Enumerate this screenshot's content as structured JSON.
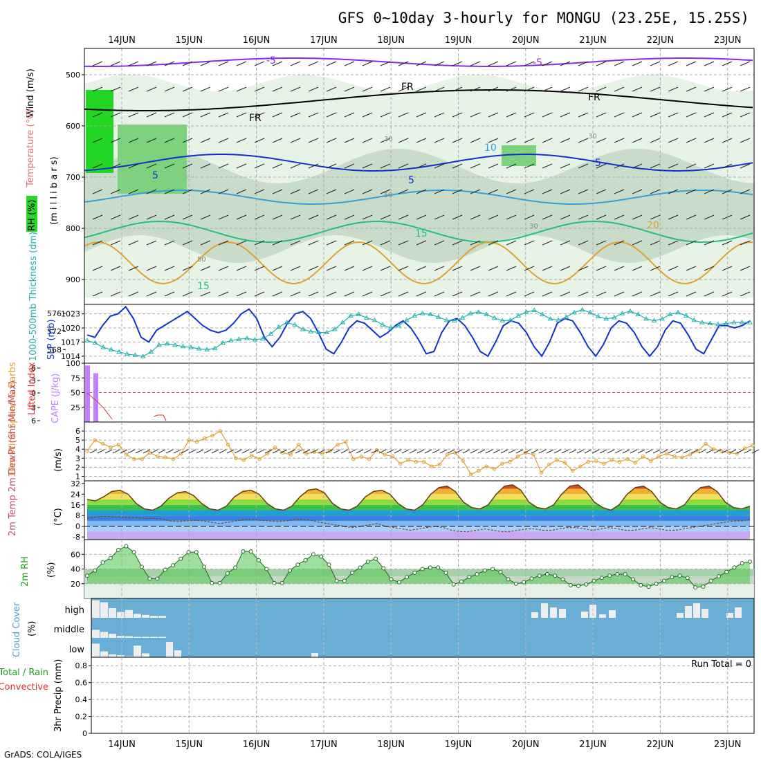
{
  "title": "GFS 0~10day 3-hourly for MONGU (23.25E, 15.25S)",
  "credit": "GrADS: COLA/IGES",
  "date_labels": [
    "14JUN",
    "15JUN",
    "16JUN",
    "17JUN",
    "18JUN",
    "19JUN",
    "20JUN",
    "21JUN",
    "22JUN",
    "23JUN"
  ],
  "colors": {
    "grid": "#b0b0b0",
    "rh_green": "#00d000",
    "temp_purple": "#8a2be2",
    "freezing": "#000000",
    "slp": "#1030d0",
    "thickness": "#20b0b0",
    "lifted": "#e03030",
    "cape": "#c080ff",
    "wind10": "#e0a030",
    "cloud": "#6aaed6"
  },
  "panels": {
    "upper_air": {
      "ylabel_wind": "Wind (m/s)",
      "ylabel_temp": "Temperature (°C)",
      "ylabel_rh": "RH (%)",
      "ylabel_pressure": "(m i l l i b a r s)",
      "pressure_ticks": [
        "500",
        "600",
        "700",
        "800",
        "900"
      ],
      "contour_labels": [
        "-5",
        "-5",
        "FR",
        "FR",
        "FR",
        "5",
        "5",
        "5",
        "15",
        "15",
        "20",
        "10",
        "30",
        "30",
        "50",
        "30",
        "50"
      ]
    },
    "slp_thickness": {
      "ylabel_thickness": "1000-500mb Thickness (dm)",
      "ylabel_slp": "SLP (mb)",
      "thickness_ticks": [
        "576",
        "572",
        "568"
      ],
      "slp_ticks": [
        "1023",
        "1020",
        "1017",
        "1014"
      ]
    },
    "cape_li": {
      "ylabel_li": "Lifted Index",
      "ylabel_cape": "CAPE (J/kg)",
      "li_ticks": [
        "-6",
        "-3",
        "0",
        "3",
        "6"
      ],
      "cape_ticks": [
        "100",
        "75",
        "50",
        "25",
        ""
      ]
    },
    "wind10": {
      "ylabel": "10m Wind Speed & Barbs",
      "unit": "(m/s)",
      "ticks": [
        "6",
        "5",
        "4",
        "3",
        "2",
        "1"
      ]
    },
    "temp2m": {
      "ylabel": "2m Temp 2m DewPt (6hr Min/Max)",
      "unit": "(°C)",
      "ticks": [
        "32",
        "24",
        "16",
        "8",
        "0",
        "-8"
      ]
    },
    "rh2m": {
      "ylabel": "2m RH",
      "unit": "(%)",
      "ticks": [
        "60",
        "40",
        "20"
      ]
    },
    "cloud": {
      "ylabel": "Cloud Cover",
      "unit": "(%)",
      "levels": [
        "high",
        "middle",
        "low"
      ]
    },
    "precip": {
      "ylabel": "3hr Precip (mm)",
      "legend_total": "Total / Rain",
      "legend_conv": "Convective",
      "run_total": "Run Total = 0",
      "ticks": [
        "0.8",
        "0.6",
        "0.4",
        "0.2",
        "0"
      ]
    }
  },
  "chart_data": [
    {
      "type": "line",
      "title": "SLP (mb)",
      "series": [
        {
          "name": "SLP (mb)",
          "values": [
            1018.5,
            1018,
            1020.5,
            1022.5,
            1023,
            1024.5,
            1022,
            1018,
            1017,
            1019.5,
            1020.5,
            1021.5,
            1022.5,
            1023.5,
            1022,
            1020.5,
            1019.5,
            1019,
            1019.5,
            1021,
            1023,
            1024,
            1022,
            1018,
            1016,
            1018,
            1021,
            1023,
            1023.5,
            1022,
            1019,
            1015.5,
            1014.5,
            1017,
            1020,
            1021.5,
            1021,
            1019.5,
            1018,
            1019,
            1020.5,
            1021.5,
            1020,
            1017.5,
            1014.5,
            1015,
            1019,
            1021.5,
            1022,
            1020.5,
            1018,
            1015,
            1014,
            1017,
            1020.5,
            1021.5,
            1021,
            1019,
            1016,
            1014,
            1017,
            1021,
            1022,
            1021.5,
            1019,
            1016,
            1014,
            1016.5,
            1020,
            1021.5,
            1021,
            1019,
            1016,
            1014,
            1016,
            1019.5,
            1021.5,
            1021,
            1018.5,
            1015.5,
            1014.5,
            1017.5,
            1020.5,
            1020.5,
            1020,
            1020.5,
            1021.5
          ]
        }
      ]
    },
    {
      "type": "line",
      "title": "1000-500mb Thickness (dm)",
      "series": [
        {
          "name": "1000-500mb Thickness (dm)",
          "values": [
            570,
            569.5,
            568.5,
            568,
            567.5,
            567,
            566.8,
            566.5,
            567.5,
            569,
            569.3,
            569,
            568.7,
            568.5,
            568.2,
            568,
            568.3,
            569.5,
            570,
            570.3,
            570.5,
            570.2,
            570.4,
            571.5,
            573,
            574,
            573.5,
            572.5,
            572,
            571.8,
            571.8,
            572.5,
            574,
            575.5,
            575.8,
            575,
            574.5,
            573.5,
            572.8,
            573.3,
            574.5,
            575.5,
            576,
            575.8,
            575.2,
            574.5,
            574.4,
            575,
            576,
            576.3,
            575.8,
            575,
            574.4,
            574.5,
            575.5,
            576.3,
            576.7,
            575.8,
            574.8,
            574.5,
            575.2,
            576.2,
            576.8,
            576.2,
            575.3,
            574.8,
            575.1,
            576,
            576.5,
            575.8,
            574.8,
            574.4,
            574.8,
            575.8,
            576.2,
            575.5,
            574.5,
            574,
            573.8,
            573.6,
            573.8,
            574,
            574,
            574
          ]
        }
      ]
    },
    {
      "type": "bar",
      "title": "CAPE (J/kg)",
      "series": [
        {
          "name": "CAPE (J/kg)",
          "values": [
            96,
            83,
            0,
            0
          ]
        }
      ]
    },
    {
      "type": "line",
      "title": "10m Wind Speed (m/s)",
      "series": [
        {
          "name": "10m Wind Speed",
          "values": [
            3.8,
            5,
            4.6,
            4.2,
            4.5,
            3.4,
            2.9,
            2.9,
            3.6,
            3.2,
            3.1,
            2.9,
            3.5,
            5,
            4.8,
            5.2,
            5.5,
            6,
            4.5,
            3,
            2.8,
            3.3,
            2.9,
            3.5,
            4.2,
            3.6,
            3.4,
            4.5,
            3.5,
            3.7,
            3.5,
            3.8,
            4.5,
            4.8,
            2.9,
            3.2,
            2.9,
            3.9,
            3.4,
            3.2,
            2.4,
            2.8,
            2.6,
            2.6,
            2.1,
            2.3,
            3.4,
            3.6,
            2.7,
            1.2,
            1.6,
            2.1,
            1.8,
            2.4,
            2.6,
            3.2,
            3.6,
            3.4,
            1.4,
            2.3,
            2.8,
            2.5,
            1.6,
            2.1,
            2.6,
            2.7,
            2.4,
            2.8,
            2.6,
            2.9,
            2.5,
            3.2,
            2.7,
            3.2,
            3.5,
            3.2,
            3.1,
            3.4,
            3.8,
            4.6,
            4,
            3.8,
            3.6,
            3.5,
            4.1,
            4.4
          ]
        }
      ]
    },
    {
      "type": "area",
      "title": "2m Temp (°C)",
      "series": [
        {
          "name": "2m Temp",
          "values": [
            20,
            19,
            22,
            26,
            27,
            24,
            17,
            13,
            12,
            15,
            21,
            25,
            26,
            23,
            17,
            13,
            12,
            15,
            22,
            26,
            27,
            24,
            17,
            13,
            12,
            15,
            22,
            27,
            28,
            25,
            17,
            13,
            12,
            15,
            22,
            26,
            27,
            24,
            17,
            13,
            12,
            16,
            24,
            29,
            30,
            26,
            18,
            14,
            13,
            16,
            24,
            30,
            31,
            27,
            18,
            14,
            13,
            16,
            24,
            30,
            31,
            26,
            18,
            14,
            12,
            16,
            24,
            29,
            30,
            26,
            18,
            14,
            13,
            16,
            24,
            29,
            30,
            26,
            18,
            14,
            13,
            15
          ]
        },
        {
          "name": "2m DewPt",
          "values": [
            6,
            7,
            7.5,
            7,
            7,
            6.5,
            6.5,
            6,
            6,
            5.5,
            4,
            3.5,
            4,
            4.5,
            4,
            3,
            2,
            3,
            4,
            5,
            5,
            4.5,
            4,
            3.5,
            4,
            5,
            5,
            4.5,
            3,
            2,
            1,
            0,
            -1,
            0,
            1,
            2,
            0,
            -1,
            -2,
            -3,
            -2,
            -1,
            0,
            -1,
            -3,
            -4,
            -4,
            -3,
            -2,
            -3,
            -4,
            -4,
            -3,
            -2,
            -2,
            -3,
            -3,
            -2,
            -1,
            -1,
            -2,
            -3,
            -2,
            -1,
            -2,
            -3,
            -3,
            -2,
            -1,
            -2,
            -3,
            -3,
            -2,
            -1,
            0,
            1,
            2,
            3,
            4,
            4,
            5
          ]
        }
      ]
    },
    {
      "type": "area",
      "title": "2m RH (%)",
      "series": [
        {
          "name": "2m RH",
          "values": [
            31,
            38,
            49,
            55,
            66,
            71,
            63,
            43,
            27,
            27,
            39,
            45,
            54,
            63,
            63,
            43,
            21,
            21,
            34,
            42,
            64,
            64,
            52,
            40,
            21,
            21,
            38,
            46,
            52,
            60,
            57,
            46,
            24,
            24,
            35,
            42,
            50,
            54,
            41,
            26,
            22,
            29,
            35,
            40,
            42,
            42,
            35,
            19,
            23,
            29,
            33,
            38,
            40,
            36,
            26,
            20,
            22,
            27,
            31,
            33,
            31,
            26,
            18,
            17,
            19,
            24,
            28,
            31,
            33,
            33,
            26,
            18,
            16,
            20,
            24,
            29,
            31,
            28,
            15,
            16,
            24,
            30,
            36,
            42,
            48,
            50
          ]
        }
      ]
    },
    {
      "type": "bar",
      "title": "Cloud Cover (%)",
      "series": [
        {
          "name": "high",
          "values": [
            90,
            80,
            50,
            30,
            40,
            20,
            15,
            10,
            10,
            0
          ]
        },
        {
          "name": "middle",
          "values": [
            40,
            30,
            20,
            10,
            8,
            5,
            5,
            5,
            5,
            0
          ]
        },
        {
          "name": "low",
          "values": [
            70,
            30,
            15,
            10,
            5,
            60,
            20,
            0,
            0,
            0
          ]
        }
      ]
    },
    {
      "type": "bar",
      "title": "3hr Precip (mm)",
      "ylim": [
        0,
        0.9
      ],
      "series": [
        {
          "name": "Total / Rain",
          "values": []
        }
      ]
    }
  ]
}
